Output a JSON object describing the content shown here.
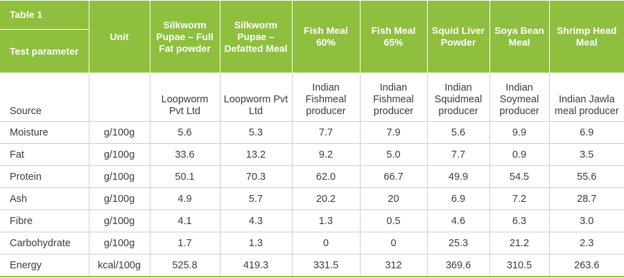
{
  "table": {
    "caption": "Table 1",
    "corner_label": "Test parameter",
    "unit_header": "Unit",
    "source_label": "Source",
    "columns": [
      {
        "name": "Silkworm Pupae – Full Fat powder",
        "source": "Loopworm Pvt Ltd"
      },
      {
        "name": "Silkworm Pupae – Defatted Meal",
        "source": "Loopworm Pvt Ltd"
      },
      {
        "name": "Fish Meal 60%",
        "source": "Indian Fishmeal producer"
      },
      {
        "name": "Fish Meal 65%",
        "source": "Indian Fishmeal producer"
      },
      {
        "name": "Squid Liver Powder",
        "source": "Indian Squidmeal producer"
      },
      {
        "name": "Soya Bean Meal",
        "source": "Indian Soymeal producer"
      },
      {
        "name": "Shrimp Head Meal",
        "source": "Indian Jawla meal producer"
      }
    ],
    "rows": [
      {
        "parameter": "Moisture",
        "unit": "g/100g",
        "values": [
          "5.6",
          "5.3",
          "7.7",
          "7.9",
          "5.6",
          "9.9",
          "6.9"
        ]
      },
      {
        "parameter": "Fat",
        "unit": "g/100g",
        "values": [
          "33.6",
          "13.2",
          "9.2",
          "5.0",
          "7.7",
          "0.9",
          "3.5"
        ]
      },
      {
        "parameter": "Protein",
        "unit": "g/100g",
        "values": [
          "50.1",
          "70.3",
          "62.0",
          "66.7",
          "49.9",
          "54.5",
          "55.6"
        ]
      },
      {
        "parameter": "Ash",
        "unit": "g/100g",
        "values": [
          "4.9",
          "5.7",
          "20.2",
          "20",
          "6.9",
          "7.2",
          "28.7"
        ]
      },
      {
        "parameter": "Fibre",
        "unit": "g/100g",
        "values": [
          "4.1",
          "4.3",
          "1.3",
          "0.5",
          "4.6",
          "6.3",
          "3.0"
        ]
      },
      {
        "parameter": "Carbohydrate",
        "unit": "g/100g",
        "values": [
          "1.7",
          "1.3",
          "0",
          "0",
          "25.3",
          "21.2",
          "2.3"
        ]
      },
      {
        "parameter": "Energy",
        "unit": "kcal/100g",
        "values": [
          "525.8",
          "419.3",
          "331.5",
          "312",
          "369.6",
          "310.5",
          "263.6"
        ]
      }
    ],
    "colors": {
      "header_green": "#8ebf3f",
      "border": "#cfcfcf",
      "text": "#3b3b3b"
    }
  }
}
